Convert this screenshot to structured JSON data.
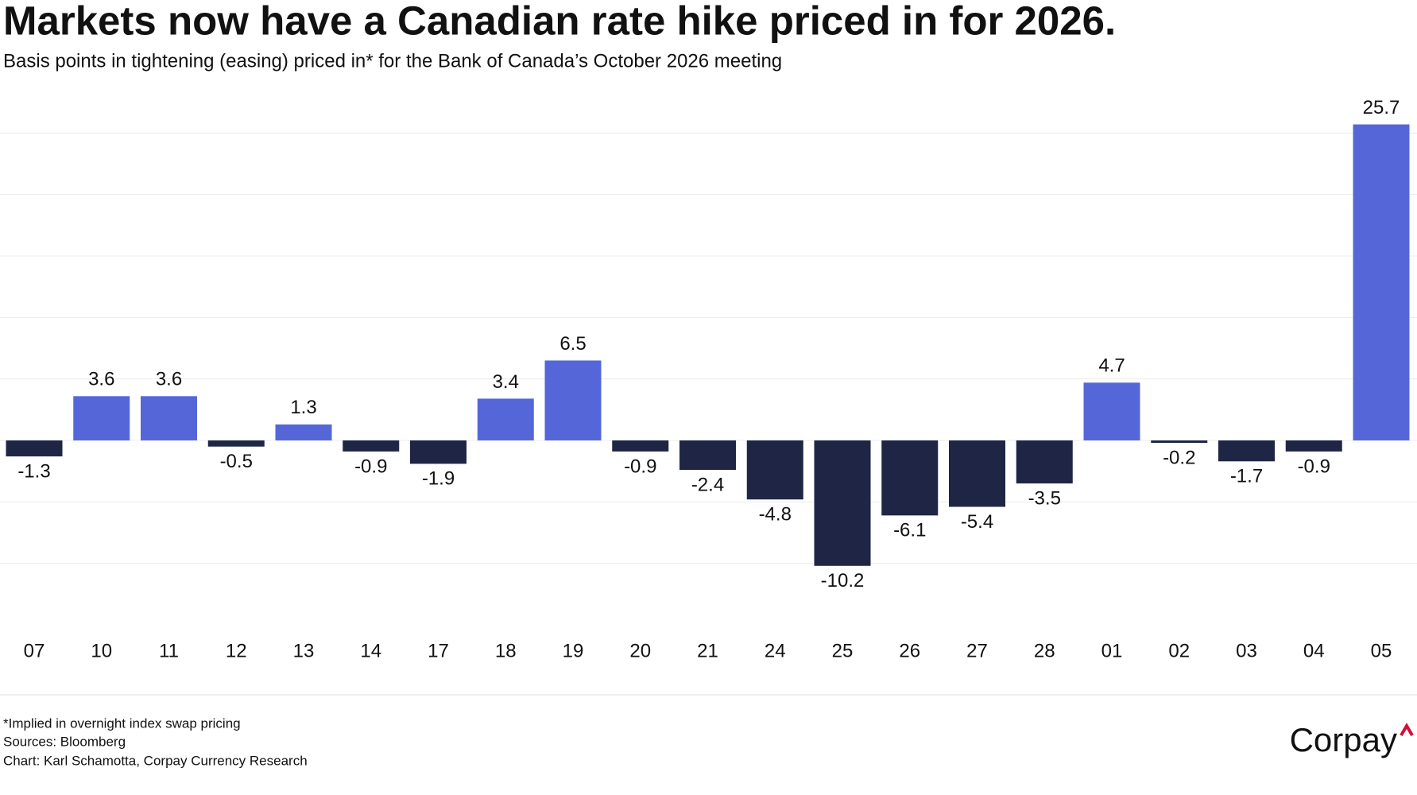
{
  "chart_data": {
    "type": "bar",
    "title": "Markets now have a Canadian rate hike priced in for 2026.",
    "subtitle": "Basis points in tightening (easing) priced in* for the Bank of Canada’s October 2026 meeting",
    "categories": [
      "07",
      "10",
      "11",
      "12",
      "13",
      "14",
      "17",
      "18",
      "19",
      "20",
      "21",
      "24",
      "25",
      "26",
      "27",
      "28",
      "01",
      "02",
      "03",
      "04",
      "05"
    ],
    "values": [
      -1.3,
      3.6,
      3.6,
      -0.5,
      1.3,
      -0.9,
      -1.9,
      3.4,
      6.5,
      -0.9,
      -2.4,
      -4.8,
      -10.2,
      -6.1,
      -5.4,
      -3.5,
      4.7,
      -0.2,
      -1.7,
      -0.9,
      25.7
    ],
    "colors": {
      "positive": "#5567d8",
      "negative": "#1f2645"
    },
    "ylim": [
      -15,
      30
    ],
    "yticks": [
      -10,
      -5,
      0,
      5,
      10,
      15,
      20,
      25
    ],
    "grid": true,
    "notes": [
      "*Implied in overnight index swap pricing",
      "Sources: Bloomberg",
      "Chart: Karl Schamotta, Corpay Currency Research"
    ],
    "logo": "Corpay"
  }
}
